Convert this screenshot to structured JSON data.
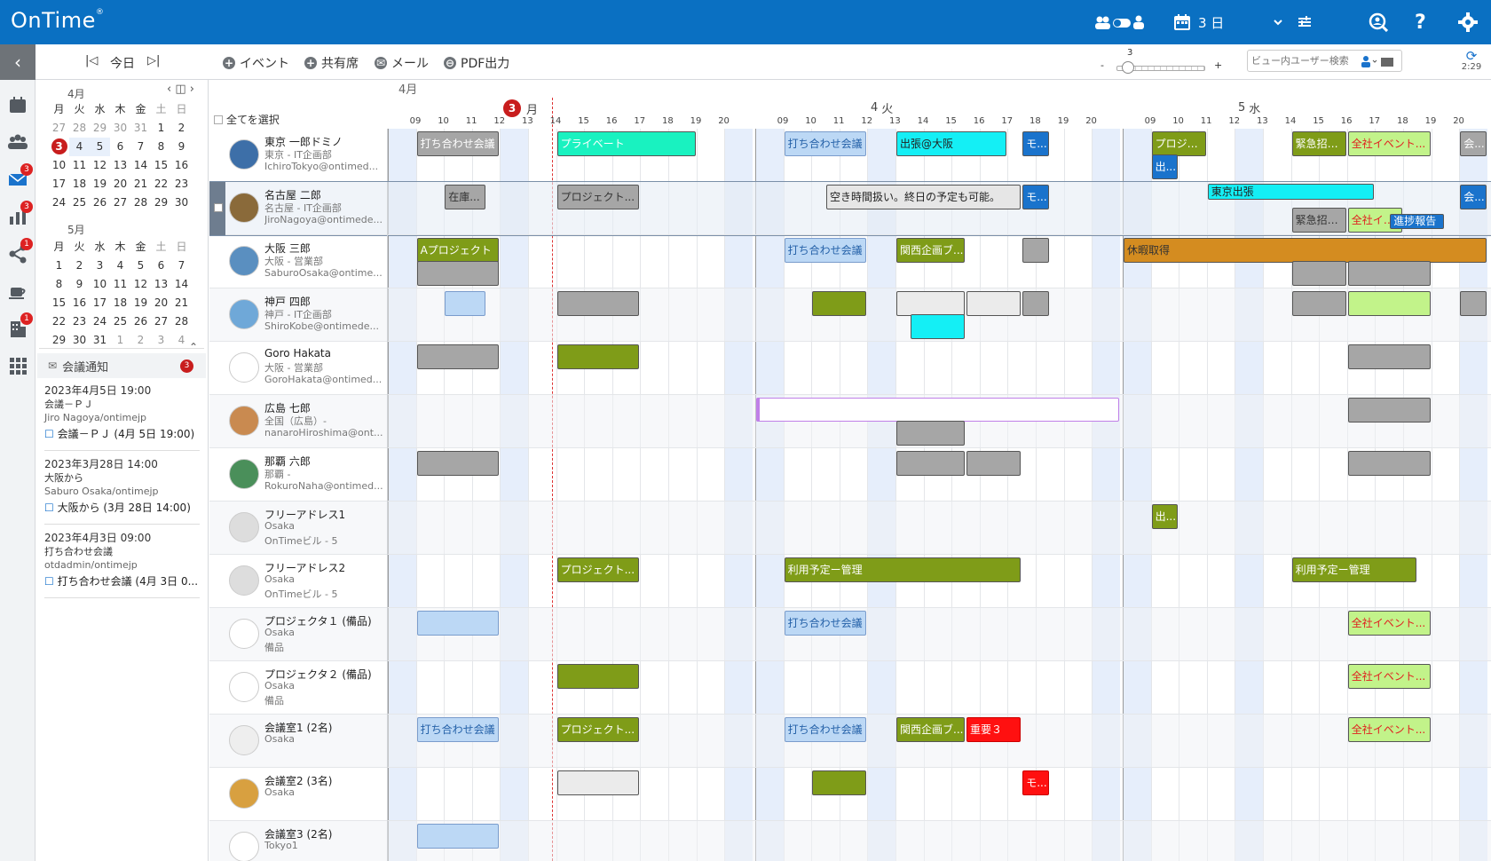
{
  "app": {
    "logo": "OnTime",
    "logo_mark": "®",
    "view_label": "3 日",
    "sync_time": "2:29"
  },
  "toolbar": {
    "today": "今日",
    "event": "イベント",
    "shared": "共有席",
    "mail": "メール",
    "pdf": "PDF出力",
    "zoom_value": "3",
    "zoom_minus": "-",
    "zoom_plus": "+",
    "search_placeholder": "ビュー内ユーザー検索"
  },
  "leftbar": {
    "badges": {
      "mail": "3",
      "reports": "3",
      "share": "1",
      "rooms": "1"
    }
  },
  "mini_calendar": {
    "weekdays": [
      "月",
      "火",
      "水",
      "木",
      "金",
      "土",
      "日"
    ],
    "april": {
      "title": "4月",
      "days": [
        "27",
        "28",
        "29",
        "30",
        "31",
        "1",
        "2",
        "3",
        "4",
        "5",
        "6",
        "7",
        "8",
        "9",
        "10",
        "11",
        "12",
        "13",
        "14",
        "15",
        "16",
        "17",
        "18",
        "19",
        "20",
        "21",
        "22",
        "23",
        "24",
        "25",
        "26",
        "27",
        "28",
        "29",
        "30"
      ]
    },
    "may": {
      "title": "5月",
      "days": [
        "1",
        "2",
        "3",
        "4",
        "5",
        "6",
        "7",
        "8",
        "9",
        "10",
        "11",
        "12",
        "13",
        "14",
        "15",
        "16",
        "17",
        "18",
        "19",
        "20",
        "21",
        "22",
        "23",
        "24",
        "25",
        "26",
        "27",
        "28",
        "29",
        "30",
        "31",
        "1",
        "2",
        "3",
        "4"
      ]
    }
  },
  "notices": {
    "title": "会議通知",
    "count": "3",
    "items": [
      {
        "time": "2023年4月5日 19:00",
        "subject": "会議－ＰＪ",
        "from": "Jiro Nagoya/ontimejp",
        "link": "会議－ＰＪ (4月 5日 19:00)"
      },
      {
        "time": "2023年3月28日 14:00",
        "subject": "大阪から",
        "from": "Saburo Osaka/ontimejp",
        "link": "大阪から (3月 28日 14:00)"
      },
      {
        "time": "2023年4月3日 09:00",
        "subject": "打ち合わせ会議",
        "from": "otdadmin/ontimejp",
        "link": "打ち合わせ会議 (4月 3日 0..."
      }
    ]
  },
  "grid": {
    "month": "4月",
    "select_all": "全てを選択",
    "days": [
      {
        "num": "3",
        "label": "月"
      },
      {
        "num": "4",
        "label": "火"
      },
      {
        "num": "5",
        "label": "水"
      }
    ],
    "hours": [
      "09",
      "10",
      "11",
      "12",
      "13",
      "14",
      "15",
      "16",
      "17",
      "18",
      "19",
      "20"
    ]
  },
  "rows": [
    {
      "name": "東京 一郎ドミノ",
      "dept": "東京 - IT企画部",
      "extra": "IchiroTokyo@ontimed..."
    },
    {
      "name": "名古屋 二郎",
      "dept": "名古屋 - IT企画部",
      "extra": "JiroNagoya@ontimede..."
    },
    {
      "name": "大阪 三郎",
      "dept": "大阪 - 営業部",
      "extra": "SaburoOsaka@ontime..."
    },
    {
      "name": "神戸 四郎",
      "dept": "神戸 - IT企画部",
      "extra": "ShiroKobe@ontimede..."
    },
    {
      "name": "Goro Hakata",
      "dept": "大阪 - 営業部",
      "extra": "GoroHakata@ontimed..."
    },
    {
      "name": "広島 七郎",
      "dept": "全国（広島）-",
      "extra": "nanaroHiroshima@ont..."
    },
    {
      "name": "那覇 六郎",
      "dept": "那覇 -",
      "extra": "RokuroNaha@ontimed..."
    },
    {
      "name": "フリーアドレス1",
      "dept": "Osaka",
      "extra": "OnTimeビル - 5"
    },
    {
      "name": "フリーアドレス2",
      "dept": "Osaka",
      "extra": "OnTimeビル - 5"
    },
    {
      "name": "プロジェクタ１ (備品)",
      "dept": "Osaka",
      "extra": "備品"
    },
    {
      "name": "プロジェクタ２ (備品)",
      "dept": "Osaka",
      "extra": "備品"
    },
    {
      "name": "会議室1 (2名)",
      "dept": "Osaka",
      "extra": ""
    },
    {
      "name": "会議室2 (3名)",
      "dept": "Osaka",
      "extra": ""
    },
    {
      "name": "会議室3 (2名)",
      "dept": "Tokyo1",
      "extra": ""
    }
  ],
  "events": [
    {
      "row": 0,
      "day": 0,
      "start": 9,
      "end": 12,
      "title": "打ち合わせ会議",
      "bg": "#a6a6a6",
      "fg": "#ffffff"
    },
    {
      "row": 0,
      "day": 0,
      "start": 14,
      "end": 19,
      "title": "プライベート",
      "bg": "#19f2c0",
      "fg": "#ffffff"
    },
    {
      "row": 0,
      "day": 1,
      "start": 9,
      "end": 12,
      "title": "打ち合わせ会議",
      "bg": "#bcd8f5",
      "fg": "#2461a8"
    },
    {
      "row": 0,
      "day": 1,
      "start": 13,
      "end": 17,
      "title": "出張@大阪",
      "bg": "#14eff5",
      "fg": "#222222"
    },
    {
      "row": 0,
      "day": 1,
      "start": 17.5,
      "end": 18.5,
      "title": "モ...",
      "bg": "#1a73cc",
      "fg": "#ffffff"
    },
    {
      "row": 0,
      "day": 2,
      "start": 9,
      "end": 11,
      "title": "プロジェ...",
      "bg": "#7f9c18",
      "fg": "#ffffff"
    },
    {
      "row": 0,
      "day": 2,
      "start": 14,
      "end": 16,
      "title": "緊急招集...",
      "bg": "#7f9c18",
      "fg": "#ffffff"
    },
    {
      "row": 0,
      "day": 2,
      "start": 16,
      "end": 19,
      "title": "全社イベント...",
      "bg": "#c2f38a",
      "fg": "#e02020"
    },
    {
      "row": 0,
      "day": 2,
      "start": 20,
      "end": 21,
      "title": "会...",
      "bg": "#a6a6a6",
      "fg": "#ffffff"
    },
    {
      "row": 0,
      "day": 2,
      "start": 9,
      "end": 10,
      "title": "出...",
      "bg": "#1a73cc",
      "fg": "#ffffff",
      "sub": 1
    },
    {
      "row": 1,
      "day": 0,
      "start": 10,
      "end": 11.5,
      "title": "在庫...",
      "bg": "#a6a6a6",
      "fg": "#333333"
    },
    {
      "row": 1,
      "day": 0,
      "start": 14,
      "end": 17,
      "title": "プロジェクト...",
      "bg": "#a6a6a6",
      "fg": "#333333"
    },
    {
      "row": 1,
      "day": 1,
      "start": 10.5,
      "end": 17.5,
      "title": "空き時間扱い。終日の予定も可能。",
      "bg": "#e6e6e6",
      "fg": "#222222"
    },
    {
      "row": 1,
      "day": 1,
      "start": 17.5,
      "end": 18.5,
      "title": "モ...",
      "bg": "#1a73cc",
      "fg": "#ffffff"
    },
    {
      "row": 1,
      "day": 2,
      "start": 11,
      "end": 17,
      "title": "東京出張",
      "bg": "#14eff5",
      "fg": "#222222",
      "short": 1
    },
    {
      "row": 1,
      "day": 2,
      "start": 14,
      "end": 16,
      "title": "緊急招集...",
      "bg": "#a6a6a6",
      "fg": "#333333",
      "sub": 1
    },
    {
      "row": 1,
      "day": 2,
      "start": 16,
      "end": 18,
      "title": "全社イベント...",
      "bg": "#c2f38a",
      "fg": "#e02020",
      "sub": 1
    },
    {
      "row": 1,
      "day": 2,
      "start": 20,
      "end": 21,
      "title": "会...",
      "bg": "#1a73cc",
      "fg": "#ffffff"
    },
    {
      "row": 1,
      "day": 2,
      "start": 17.5,
      "end": 19.5,
      "title": "進捗報告",
      "bg": "#1a73cc",
      "fg": "#ffffff",
      "sub": 2
    },
    {
      "row": 2,
      "day": 0,
      "start": 9,
      "end": 12,
      "title": "Aプロジェクト",
      "bg": "#7f9c18",
      "fg": "#ffffff"
    },
    {
      "row": 2,
      "day": 0,
      "start": 9,
      "end": 12,
      "title": "",
      "bg": "#a6a6a6",
      "fg": "#ffffff",
      "sub": 1
    },
    {
      "row": 2,
      "day": 1,
      "start": 9,
      "end": 12,
      "title": "打ち合わせ会議",
      "bg": "#bcd8f5",
      "fg": "#2461a8"
    },
    {
      "row": 2,
      "day": 1,
      "start": 13,
      "end": 15.5,
      "title": "関西企画ブ...",
      "bg": "#7f9c18",
      "fg": "#ffffff"
    },
    {
      "row": 2,
      "day": 1,
      "start": 17.5,
      "end": 18.5,
      "title": "",
      "bg": "#a6a6a6",
      "fg": "#ffffff"
    },
    {
      "row": 2,
      "day": 2,
      "start": 8,
      "end": 21,
      "title": "休暇取得",
      "bg": "#d48c20",
      "fg": "#333333"
    },
    {
      "row": 2,
      "day": 2,
      "start": 14,
      "end": 16,
      "title": "",
      "bg": "#a6a6a6",
      "fg": "#ffffff",
      "sub": 1
    },
    {
      "row": 2,
      "day": 2,
      "start": 16,
      "end": 19,
      "title": "",
      "bg": "#a6a6a6",
      "fg": "#ffffff",
      "sub": 1
    },
    {
      "row": 3,
      "day": 0,
      "start": 10,
      "end": 11.5,
      "title": "",
      "bg": "#bcd8f5",
      "fg": "#ffffff"
    },
    {
      "row": 3,
      "day": 0,
      "start": 14,
      "end": 17,
      "title": "",
      "bg": "#a6a6a6",
      "fg": "#ffffff"
    },
    {
      "row": 3,
      "day": 1,
      "start": 10,
      "end": 12,
      "title": "",
      "bg": "#7f9c18",
      "fg": "#ffffff"
    },
    {
      "row": 3,
      "day": 1,
      "start": 13,
      "end": 15.5,
      "title": "",
      "bg": "#ebebeb",
      "fg": "#ffffff"
    },
    {
      "row": 3,
      "day": 1,
      "start": 15.5,
      "end": 17.5,
      "title": "",
      "bg": "#ebebeb",
      "fg": "#ffffff"
    },
    {
      "row": 3,
      "day": 1,
      "start": 17.5,
      "end": 18.5,
      "title": "",
      "bg": "#a6a6a6",
      "fg": "#ffffff"
    },
    {
      "row": 3,
      "day": 1,
      "start": 13.5,
      "end": 15.5,
      "title": "",
      "bg": "#14eff5",
      "fg": "#ffffff",
      "sub": 1
    },
    {
      "row": 3,
      "day": 2,
      "start": 14,
      "end": 16,
      "title": "",
      "bg": "#a6a6a6",
      "fg": "#ffffff"
    },
    {
      "row": 3,
      "day": 2,
      "start": 16,
      "end": 19,
      "title": "",
      "bg": "#c2f38a",
      "fg": "#ffffff"
    },
    {
      "row": 3,
      "day": 2,
      "start": 20,
      "end": 21,
      "title": "",
      "bg": "#a6a6a6",
      "fg": "#ffffff"
    },
    {
      "row": 4,
      "day": 0,
      "start": 9,
      "end": 12,
      "title": "",
      "bg": "#a6a6a6",
      "fg": "#ffffff"
    },
    {
      "row": 4,
      "day": 0,
      "start": 14,
      "end": 17,
      "title": "",
      "bg": "#7f9c18",
      "fg": "#ffffff"
    },
    {
      "row": 4,
      "day": 2,
      "start": 16,
      "end": 19,
      "title": "",
      "bg": "#a6a6a6",
      "fg": "#ffffff"
    },
    {
      "row": 5,
      "day": 1,
      "start": 8,
      "end": 21,
      "title": "",
      "bg": "#ffffff",
      "fg": "#ffffff",
      "thin": 1
    },
    {
      "row": 5,
      "day": 2,
      "start": 16,
      "end": 19,
      "title": "",
      "bg": "#a6a6a6",
      "fg": "#ffffff"
    },
    {
      "row": 5,
      "day": 1,
      "start": 13,
      "end": 15.5,
      "title": "",
      "bg": "#a6a6a6",
      "fg": "#ffffff",
      "sub": 1
    },
    {
      "row": 6,
      "day": 0,
      "start": 9,
      "end": 12,
      "title": "",
      "bg": "#a6a6a6",
      "fg": "#ffffff"
    },
    {
      "row": 6,
      "day": 1,
      "start": 13,
      "end": 15.5,
      "title": "",
      "bg": "#a6a6a6",
      "fg": "#ffffff"
    },
    {
      "row": 6,
      "day": 1,
      "start": 15.5,
      "end": 17.5,
      "title": "",
      "bg": "#a6a6a6",
      "fg": "#ffffff"
    },
    {
      "row": 6,
      "day": 2,
      "start": 16,
      "end": 19,
      "title": "",
      "bg": "#a6a6a6",
      "fg": "#ffffff"
    },
    {
      "row": 7,
      "day": 2,
      "start": 9,
      "end": 10,
      "title": "出...",
      "bg": "#7f9c18",
      "fg": "#ffffff"
    },
    {
      "row": 8,
      "day": 0,
      "start": 14,
      "end": 17,
      "title": "プロジェクト...",
      "bg": "#7f9c18",
      "fg": "#ffffff"
    },
    {
      "row": 8,
      "day": 1,
      "start": 9,
      "end": 17.5,
      "title": "利用予定ー管理",
      "bg": "#7f9c18",
      "fg": "#ffffff"
    },
    {
      "row": 8,
      "day": 2,
      "start": 14,
      "end": 18.5,
      "title": "利用予定ー管理",
      "bg": "#7f9c18",
      "fg": "#ffffff"
    },
    {
      "row": 9,
      "day": 0,
      "start": 9,
      "end": 12,
      "title": "",
      "bg": "#bcd8f5",
      "fg": "#ffffff"
    },
    {
      "row": 9,
      "day": 1,
      "start": 9,
      "end": 12,
      "title": "打ち合わせ会議",
      "bg": "#bcd8f5",
      "fg": "#2461a8"
    },
    {
      "row": 9,
      "day": 2,
      "start": 16,
      "end": 19,
      "title": "全社イベント...",
      "bg": "#c2f38a",
      "fg": "#e02020"
    },
    {
      "row": 10,
      "day": 0,
      "start": 14,
      "end": 17,
      "title": "",
      "bg": "#7f9c18",
      "fg": "#ffffff"
    },
    {
      "row": 10,
      "day": 2,
      "start": 16,
      "end": 19,
      "title": "全社イベント...",
      "bg": "#c2f38a",
      "fg": "#e02020"
    },
    {
      "row": 11,
      "day": 0,
      "start": 9,
      "end": 12,
      "title": "打ち合わせ会議",
      "bg": "#bcd8f5",
      "fg": "#2461a8"
    },
    {
      "row": 11,
      "day": 0,
      "start": 14,
      "end": 17,
      "title": "プロジェクト...",
      "bg": "#7f9c18",
      "fg": "#ffffff"
    },
    {
      "row": 11,
      "day": 1,
      "start": 9,
      "end": 12,
      "title": "打ち合わせ会議",
      "bg": "#bcd8f5",
      "fg": "#2461a8"
    },
    {
      "row": 11,
      "day": 1,
      "start": 13,
      "end": 15.5,
      "title": "関西企画ブ...",
      "bg": "#7f9c18",
      "fg": "#ffffff"
    },
    {
      "row": 11,
      "day": 1,
      "start": 15.5,
      "end": 17.5,
      "title": "重要３",
      "bg": "#ff1010",
      "fg": "#ffffff"
    },
    {
      "row": 11,
      "day": 2,
      "start": 16,
      "end": 19,
      "title": "全社イベント...",
      "bg": "#c2f38a",
      "fg": "#e02020"
    },
    {
      "row": 12,
      "day": 0,
      "start": 14,
      "end": 17,
      "title": "",
      "bg": "#ebebeb",
      "fg": "#ffffff"
    },
    {
      "row": 12,
      "day": 1,
      "start": 10,
      "end": 12,
      "title": "",
      "bg": "#7f9c18",
      "fg": "#ffffff"
    },
    {
      "row": 12,
      "day": 1,
      "start": 17.5,
      "end": 18.5,
      "title": "モ...",
      "bg": "#ff1010",
      "fg": "#ffffff"
    },
    {
      "row": 13,
      "day": 0,
      "start": 9,
      "end": 12,
      "title": "",
      "bg": "#bcd8f5",
      "fg": "#ffffff"
    }
  ]
}
